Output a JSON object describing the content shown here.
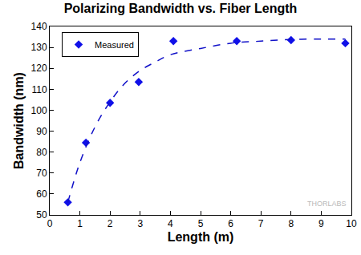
{
  "chart_data": {
    "type": "scatter",
    "title": "Polarizing Bandwidth vs. Fiber Length",
    "x_label": "Length (m)",
    "y_label": "Bandwidth (nm)",
    "series": [
      {
        "name": "Measured",
        "type": "scatter",
        "color": "#1010e8",
        "marker": "diamond",
        "x": [
          0.6,
          1.2,
          2.0,
          2.95,
          4.1,
          6.2,
          8.0,
          9.8
        ],
        "values": [
          56,
          84.5,
          103.5,
          113.5,
          133,
          133,
          133.5,
          132
        ]
      },
      {
        "type": "line",
        "color": "#1010c8",
        "line_style": "dash",
        "x": [
          0.6,
          1.0,
          1.5,
          2.0,
          2.5,
          3.0,
          3.5,
          4.0,
          5.0,
          6.0,
          7.0,
          8.0,
          9.0,
          9.8
        ],
        "values": [
          56,
          75,
          92,
          104,
          113,
          119,
          123,
          126.5,
          129.5,
          132,
          133,
          133.8,
          134,
          134
        ]
      }
    ],
    "xlim": [
      0,
      10
    ],
    "xticks": [
      0,
      1,
      2,
      3,
      4,
      5,
      6,
      7,
      8,
      9,
      10
    ],
    "ylim": [
      50,
      140
    ],
    "yticks": [
      50,
      60,
      70,
      80,
      90,
      100,
      110,
      120,
      130,
      140
    ],
    "grid": false,
    "legend": "top-left",
    "annotations": [
      "THORLABS"
    ]
  }
}
